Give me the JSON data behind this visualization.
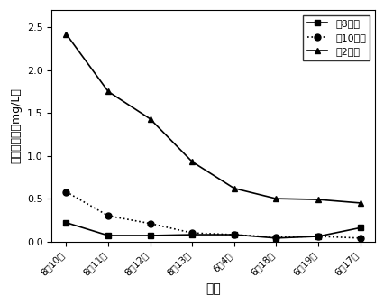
{
  "x_labels": [
    "8月10日",
    "8月11日",
    "8月12日",
    "8月13日",
    "6月4日",
    "6月18日",
    "6月19日",
    "6月17日"
  ],
  "series": [
    {
      "name": "北8号塘",
      "values": [
        0.22,
        0.07,
        0.07,
        0.08,
        0.08,
        0.04,
        0.06,
        0.16
      ],
      "marker": "s",
      "linestyle": "-",
      "color": "#000000"
    },
    {
      "name": "北10号塘",
      "values": [
        0.58,
        0.3,
        0.21,
        0.1,
        0.08,
        0.05,
        0.06,
        0.04
      ],
      "marker": "o",
      "linestyle": ":",
      "color": "#000000"
    },
    {
      "name": "南2号塘",
      "values": [
        2.42,
        1.75,
        1.43,
        0.93,
        0.62,
        0.5,
        0.49,
        0.45
      ],
      "marker": "^",
      "linestyle": "-",
      "color": "#000000"
    }
  ],
  "xlabel": "日期",
  "ylabel": "亚础酸态氮（mg/L）",
  "ylim": [
    0.0,
    2.7
  ],
  "yticks": [
    0.0,
    0.5,
    1.0,
    1.5,
    2.0,
    2.5
  ],
  "background_color": "#ffffff",
  "legend_loc": "upper right",
  "markersize": 5,
  "linewidth": 1.2
}
